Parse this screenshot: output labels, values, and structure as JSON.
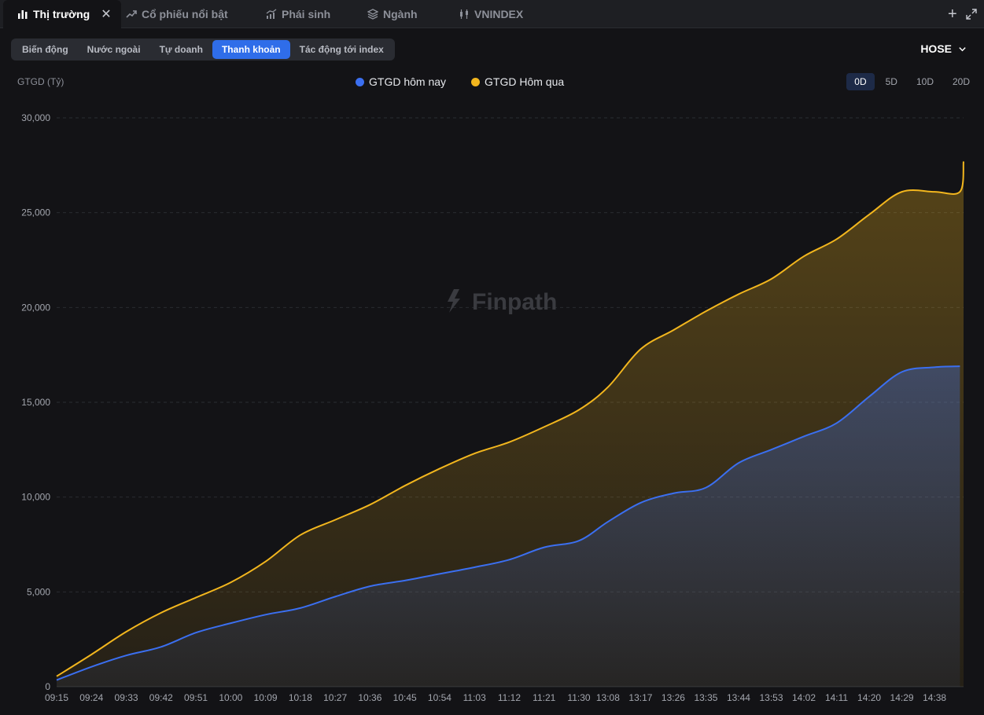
{
  "tabs": [
    {
      "label": "Thị trường",
      "icon": "bar-chart-icon",
      "active": true
    },
    {
      "label": "Cổ phiếu nổi bật",
      "icon": "trending-up-icon"
    },
    {
      "label": "Phái sinh",
      "icon": "chart-growth-icon"
    },
    {
      "label": "Ngành",
      "icon": "layers-icon"
    },
    {
      "label": "VNINDEX",
      "icon": "candlestick-icon"
    }
  ],
  "subtabs": [
    "Biến động",
    "Nước ngoài",
    "Tự doanh",
    "Thanh khoản",
    "Tác động tới index"
  ],
  "active_subtab": "Thanh khoản",
  "exchange": "HOSE",
  "ranges": [
    "0D",
    "5D",
    "10D",
    "20D"
  ],
  "active_range": "0D",
  "watermark": "Finpath",
  "colors": {
    "today": "#3b6ff0",
    "yesterday": "#f2b61e",
    "accent": "#2f6de9"
  },
  "chart_data": {
    "type": "area",
    "ylabel": "GTGD (Tỷ)",
    "ylim": [
      0,
      30000
    ],
    "yticks": [
      0,
      5000,
      10000,
      15000,
      20000,
      25000,
      30000
    ],
    "ytick_labels": [
      "0",
      "5,000",
      "10,000",
      "15,000",
      "20,000",
      "25,000",
      "30,000"
    ],
    "xtick_labels": [
      "09:15",
      "09:24",
      "09:33",
      "09:42",
      "09:51",
      "10:00",
      "10:09",
      "10:18",
      "10:27",
      "10:36",
      "10:45",
      "10:54",
      "11:03",
      "11:12",
      "11:21",
      "11:30",
      "13:08",
      "13:17",
      "13:26",
      "13:35",
      "13:44",
      "13:53",
      "14:02",
      "14:11",
      "14:20",
      "14:29",
      "14:38"
    ],
    "grid": true,
    "legend": "top-center",
    "series": [
      {
        "name": "GTGD hôm nay",
        "color": "#3b6ff0",
        "x": [
          "09:15",
          "09:24",
          "09:33",
          "09:42",
          "09:51",
          "10:00",
          "10:09",
          "10:18",
          "10:27",
          "10:36",
          "10:45",
          "10:54",
          "11:03",
          "11:12",
          "11:21",
          "11:30",
          "13:08",
          "13:17",
          "13:26",
          "13:35",
          "13:44",
          "13:53",
          "14:02",
          "14:11",
          "14:20",
          "14:29",
          "14:38",
          "14:45"
        ],
        "values": [
          350,
          1050,
          1650,
          2100,
          2850,
          3350,
          3800,
          4150,
          4750,
          5300,
          5600,
          5950,
          6300,
          6700,
          7350,
          7700,
          8700,
          9700,
          10200,
          10500,
          11800,
          12500,
          13200,
          13900,
          15300,
          16600,
          16850,
          16900
        ]
      },
      {
        "name": "GTGD Hôm qua",
        "color": "#f2b61e",
        "x": [
          "09:15",
          "09:24",
          "09:33",
          "09:42",
          "09:51",
          "10:00",
          "10:09",
          "10:18",
          "10:27",
          "10:36",
          "10:45",
          "10:54",
          "11:03",
          "11:12",
          "11:21",
          "11:30",
          "13:08",
          "13:17",
          "13:26",
          "13:35",
          "13:44",
          "13:53",
          "14:02",
          "14:11",
          "14:20",
          "14:29",
          "14:38",
          "14:45",
          "14:46"
        ],
        "values": [
          550,
          1700,
          2900,
          3900,
          4700,
          5500,
          6600,
          8000,
          8800,
          9600,
          10600,
          11500,
          12300,
          12900,
          13700,
          14600,
          15800,
          17800,
          18800,
          19800,
          20700,
          21500,
          22700,
          23600,
          24900,
          26100,
          26100,
          26100,
          27700
        ]
      }
    ]
  }
}
